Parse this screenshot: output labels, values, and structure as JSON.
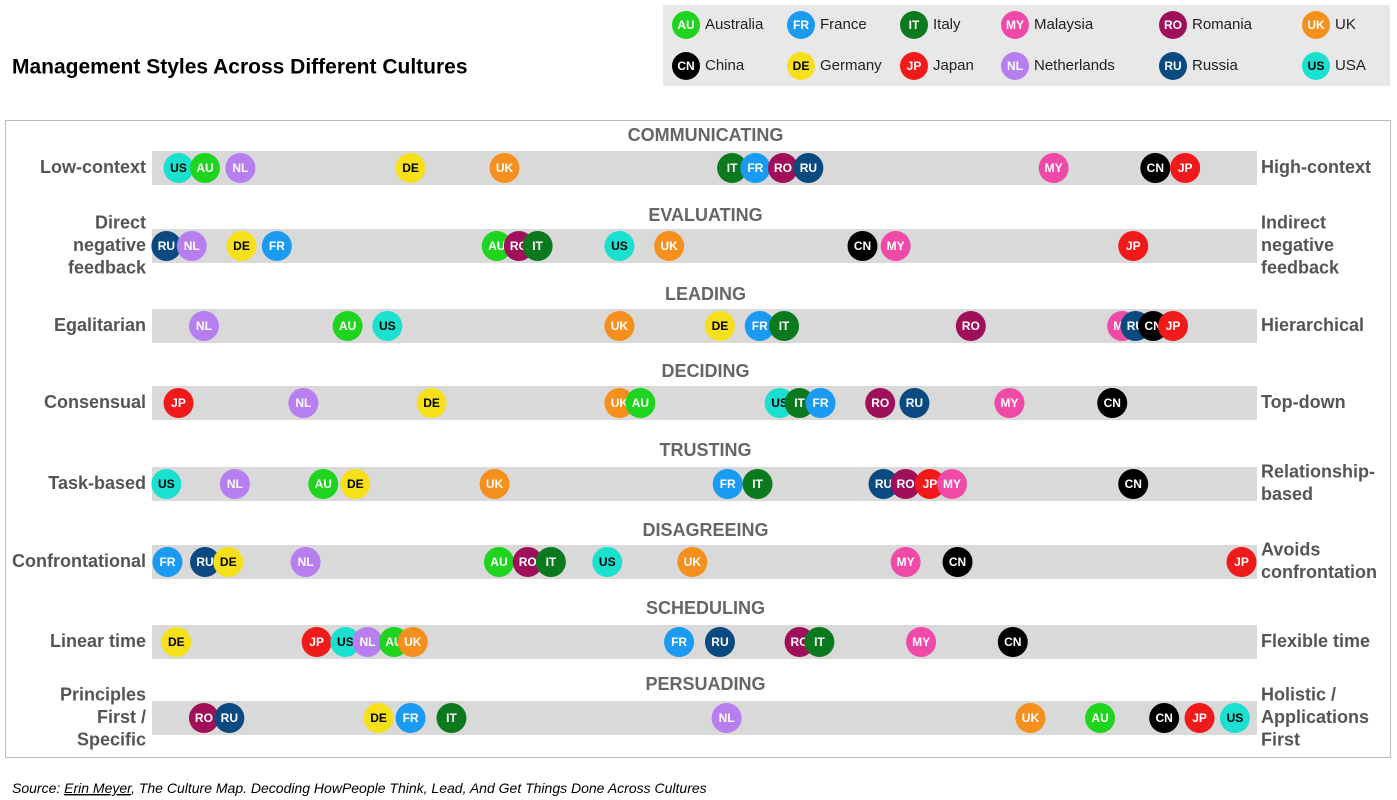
{
  "chart_data": {
    "type": "dot-scale",
    "title": "Management Styles Across Different Cultures",
    "xlim": [
      0,
      100
    ],
    "categories": [
      "COMMUNICATING",
      "EVALUATING",
      "LEADING",
      "DECIDING",
      "TRUSTING",
      "DISAGREEING",
      "SCHEDULING",
      "PERSUADING"
    ],
    "left_labels": [
      [
        "Low-context"
      ],
      [
        "Direct",
        "negative",
        "feedback"
      ],
      [
        "Egalitarian"
      ],
      [
        "Consensual"
      ],
      [
        "Task-based"
      ],
      [
        "Confrontational"
      ],
      [
        "Linear time"
      ],
      [
        "Principles",
        "First /",
        "Specific"
      ]
    ],
    "right_labels": [
      [
        "High-context"
      ],
      [
        "Indirect",
        "negative",
        "feedback"
      ],
      [
        "Hierarchical"
      ],
      [
        "Top-down"
      ],
      [
        "Relationship-",
        "based"
      ],
      [
        "Avoids",
        "confrontation"
      ],
      [
        "Flexible time"
      ],
      [
        "Holistic /",
        "Applications",
        "First"
      ]
    ],
    "series": [
      {
        "name": "Australia",
        "code": "AU",
        "color": "#1ed41e",
        "label_color": "#ffffff",
        "values": [
          4.8,
          31.2,
          17.7,
          44.2,
          15.5,
          31.4,
          21.9,
          85.8
        ]
      },
      {
        "name": "France",
        "code": "FR",
        "color": "#1a9af0",
        "label_color": "#ffffff",
        "values": [
          54.6,
          11.3,
          55.0,
          60.5,
          52.1,
          1.4,
          47.7,
          23.4
        ]
      },
      {
        "name": "Italy",
        "code": "IT",
        "color": "#0b7a1f",
        "label_color": "#ffffff",
        "values": [
          52.5,
          34.9,
          57.2,
          58.6,
          54.8,
          36.1,
          60.4,
          27.1
        ]
      },
      {
        "name": "Malaysia",
        "code": "MY",
        "color": "#f04aa8",
        "label_color": "#ffffff",
        "values": [
          81.6,
          67.3,
          87.8,
          77.6,
          72.4,
          68.2,
          69.6,
          null
        ]
      },
      {
        "name": "Romania",
        "code": "RO",
        "color": "#a0105a",
        "label_color": "#ffffff",
        "values": [
          57.1,
          33.2,
          74.1,
          65.9,
          68.2,
          34.0,
          58.6,
          4.7
        ]
      },
      {
        "name": "UK",
        "code": "UK",
        "color": "#f5901e",
        "label_color": "#ffffff",
        "values": [
          31.9,
          46.8,
          42.3,
          42.3,
          31.0,
          48.9,
          23.6,
          79.5
        ]
      },
      {
        "name": "China",
        "code": "CN",
        "color": "#000000",
        "label_color": "#ffffff",
        "values": [
          90.8,
          64.3,
          90.6,
          86.9,
          88.8,
          72.9,
          77.9,
          91.6
        ]
      },
      {
        "name": "Germany",
        "code": "DE",
        "color": "#f5e01a",
        "label_color": "#000000",
        "values": [
          23.4,
          8.1,
          51.4,
          25.3,
          18.4,
          6.9,
          2.2,
          20.5
        ]
      },
      {
        "name": "Japan",
        "code": "JP",
        "color": "#f01a1a",
        "label_color": "#ffffff",
        "values": [
          93.5,
          88.8,
          92.4,
          2.4,
          70.4,
          98.6,
          14.9,
          94.8
        ]
      },
      {
        "name": "Netherlands",
        "code": "NL",
        "color": "#b77ef0",
        "label_color": "#ffffff",
        "values": [
          8.0,
          3.6,
          4.7,
          13.7,
          7.5,
          13.9,
          19.5,
          52.0
        ]
      },
      {
        "name": "Russia",
        "code": "RU",
        "color": "#0a4a80",
        "label_color": "#ffffff",
        "values": [
          59.4,
          1.3,
          89.0,
          69.0,
          66.2,
          4.8,
          51.4,
          7.0
        ]
      },
      {
        "name": "USA",
        "code": "US",
        "color": "#1ae0d0",
        "label_color": "#000000",
        "values": [
          2.4,
          42.3,
          21.3,
          56.8,
          1.3,
          41.2,
          17.5,
          98.0
        ]
      }
    ],
    "source": {
      "prefix": "Source: ",
      "author": "Erin Meyer",
      "rest": ", The Culture Map. Decoding HowPeople Think, Lead, And Get Things Done Across Cultures"
    }
  }
}
